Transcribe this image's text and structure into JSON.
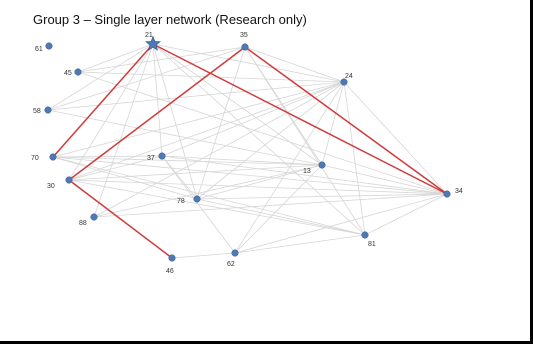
{
  "figure": {
    "title": "Group 3 – Single layer network (Research only)"
  },
  "colors": {
    "node": "#4f79b4",
    "edge": "#d6d6d6",
    "highlight_edge": "#d03a3a",
    "star": "#4f79b4"
  },
  "nodes": [
    {
      "id": "61"
    },
    {
      "id": "21",
      "shape": "star"
    },
    {
      "id": "35"
    },
    {
      "id": "45"
    },
    {
      "id": "24"
    },
    {
      "id": "58"
    },
    {
      "id": "70"
    },
    {
      "id": "37"
    },
    {
      "id": "13"
    },
    {
      "id": "30"
    },
    {
      "id": "34"
    },
    {
      "id": "78"
    },
    {
      "id": "88"
    },
    {
      "id": "81"
    },
    {
      "id": "62"
    },
    {
      "id": "46"
    }
  ],
  "edges": [
    [
      "21",
      "45"
    ],
    [
      "21",
      "58"
    ],
    [
      "21",
      "37"
    ],
    [
      "21",
      "78"
    ],
    [
      "21",
      "24"
    ],
    [
      "21",
      "13"
    ],
    [
      "21",
      "81"
    ],
    [
      "21",
      "30"
    ],
    [
      "21",
      "88"
    ],
    [
      "35",
      "45"
    ],
    [
      "35",
      "13"
    ],
    [
      "35",
      "81"
    ],
    [
      "35",
      "24"
    ],
    [
      "35",
      "78"
    ],
    [
      "35",
      "58"
    ],
    [
      "24",
      "45"
    ],
    [
      "24",
      "58"
    ],
    [
      "24",
      "70"
    ],
    [
      "24",
      "30"
    ],
    [
      "24",
      "37"
    ],
    [
      "24",
      "78"
    ],
    [
      "24",
      "88"
    ],
    [
      "24",
      "62"
    ],
    [
      "24",
      "81"
    ],
    [
      "24",
      "34"
    ],
    [
      "24",
      "13"
    ],
    [
      "70",
      "37"
    ],
    [
      "70",
      "78"
    ],
    [
      "70",
      "34"
    ],
    [
      "70",
      "13"
    ],
    [
      "70",
      "81"
    ],
    [
      "30",
      "37"
    ],
    [
      "30",
      "13"
    ],
    [
      "30",
      "34"
    ],
    [
      "30",
      "81"
    ],
    [
      "37",
      "34"
    ],
    [
      "37",
      "13"
    ],
    [
      "37",
      "62"
    ],
    [
      "37",
      "78"
    ],
    [
      "13",
      "62"
    ],
    [
      "13",
      "78"
    ],
    [
      "13",
      "88"
    ],
    [
      "13",
      "34"
    ],
    [
      "34",
      "78"
    ],
    [
      "34",
      "88"
    ],
    [
      "34",
      "62"
    ],
    [
      "34",
      "81"
    ],
    [
      "62",
      "46"
    ],
    [
      "62",
      "81"
    ],
    [
      "81",
      "78"
    ],
    [
      "58",
      "13"
    ],
    [
      "45",
      "34"
    ]
  ],
  "highlight_edges": [
    [
      "21",
      "70"
    ],
    [
      "21",
      "34"
    ],
    [
      "35",
      "30"
    ],
    [
      "35",
      "34"
    ],
    [
      "30",
      "46"
    ]
  ]
}
